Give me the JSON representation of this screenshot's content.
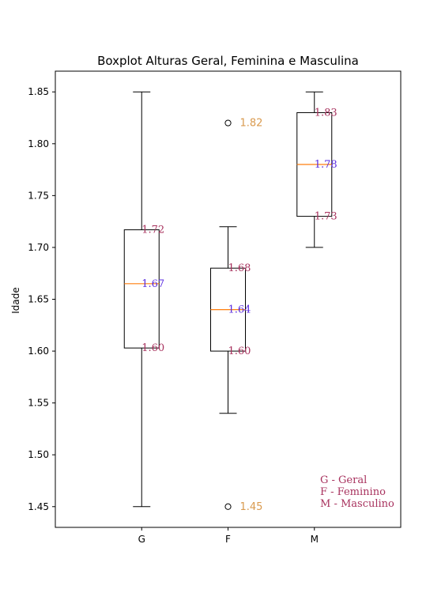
{
  "chart_data": {
    "type": "box",
    "title": "Boxplot Alturas Geral, Feminina e Masculina",
    "xlabel": "",
    "ylabel": "Idade",
    "ylim": [
      1.43,
      1.87
    ],
    "yticks": [
      "1.45",
      "1.50",
      "1.55",
      "1.60",
      "1.65",
      "1.70",
      "1.75",
      "1.80",
      "1.85"
    ],
    "grid": false,
    "categories": [
      "G",
      "F",
      "M"
    ],
    "boxes": [
      {
        "category": "G",
        "whisker_low": 1.45,
        "q1": 1.603,
        "median": 1.665,
        "q3": 1.717,
        "whisker_high": 1.85,
        "outliers": [],
        "labels": {
          "q3": "1.72",
          "median": "1.67",
          "q1": "1.60"
        },
        "outlier_labels": []
      },
      {
        "category": "F",
        "whisker_low": 1.54,
        "q1": 1.6,
        "median": 1.64,
        "q3": 1.68,
        "whisker_high": 1.72,
        "outliers": [
          1.82,
          1.45
        ],
        "labels": {
          "q3": "1.68",
          "median": "1.64",
          "q1": "1.60"
        },
        "outlier_labels": [
          "1.82",
          "1.45"
        ]
      },
      {
        "category": "M",
        "whisker_low": 1.7,
        "q1": 1.73,
        "median": 1.78,
        "q3": 1.83,
        "whisker_high": 1.85,
        "outliers": [],
        "labels": {
          "q3": "1.83",
          "median": "1.78",
          "q1": "1.73"
        },
        "outlier_labels": []
      }
    ],
    "legend_text": [
      "G - Geral",
      "F - Feminino",
      "M - Masculino"
    ],
    "legend_placement": "bottom-right",
    "colors": {
      "box": "#000000",
      "median_line": "#ff7f0e",
      "quartile_label": "#a8325e",
      "median_label": "#5a2de0",
      "outlier_label": "#d99a4e",
      "legend_text": "#a8325e"
    }
  }
}
